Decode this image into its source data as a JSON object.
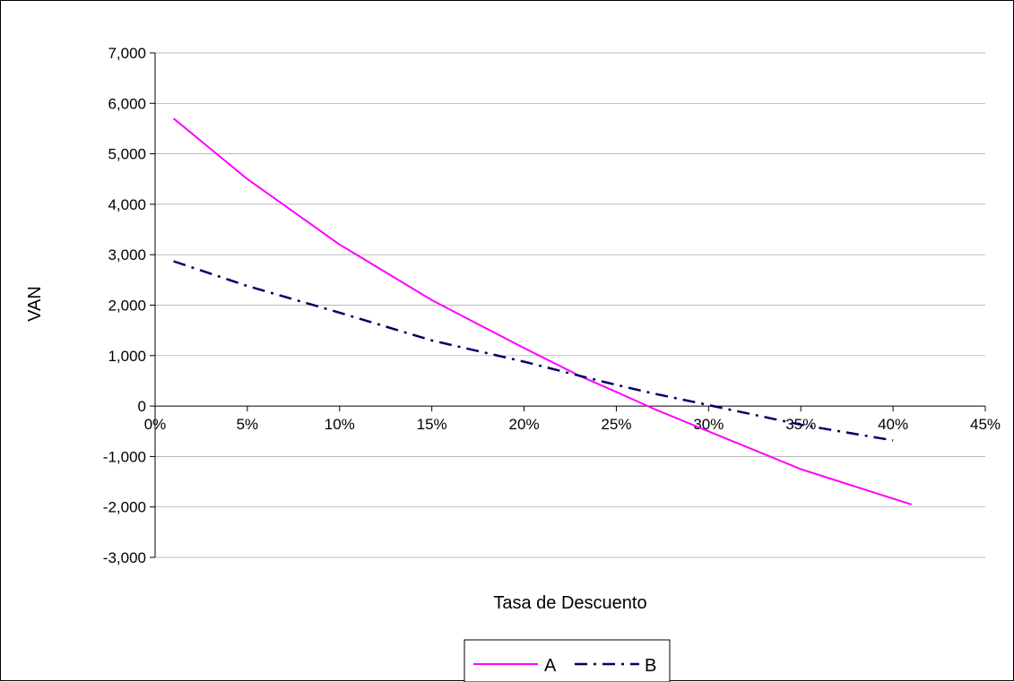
{
  "chart_data": {
    "type": "line",
    "title": "",
    "xlabel": "Tasa de Descuento",
    "ylabel": "VAN",
    "xlim": [
      0,
      45
    ],
    "ylim": [
      -3000,
      7000
    ],
    "x_ticks": [
      0,
      5,
      10,
      15,
      20,
      25,
      30,
      35,
      40,
      45
    ],
    "x_tick_labels": [
      "0%",
      "5%",
      "10%",
      "15%",
      "20%",
      "25%",
      "30%",
      "35%",
      "40%",
      "45%"
    ],
    "y_ticks": [
      -3000,
      -2000,
      -1000,
      0,
      1000,
      2000,
      3000,
      4000,
      5000,
      6000,
      7000
    ],
    "y_tick_labels": [
      "-3,000",
      "-2,000",
      "-1,000",
      "0",
      "1,000",
      "2,000",
      "3,000",
      "4,000",
      "5,000",
      "6,000",
      "7,000"
    ],
    "grid": true,
    "legend_position": "bottom",
    "series": [
      {
        "name": "A",
        "color": "#ff00ff",
        "style": "solid",
        "x": [
          1,
          5,
          10,
          15,
          20,
          23,
          25,
          27,
          30,
          35,
          41
        ],
        "y": [
          5700,
          4500,
          3200,
          2100,
          1150,
          600,
          280,
          -50,
          -500,
          -1250,
          -1950
        ]
      },
      {
        "name": "B",
        "color": "#000066",
        "style": "dash-dot",
        "x": [
          1,
          5,
          10,
          15,
          20,
          23,
          25,
          27,
          30,
          35,
          40
        ],
        "y": [
          2870,
          2380,
          1850,
          1300,
          880,
          600,
          420,
          250,
          20,
          -370,
          -680
        ]
      }
    ]
  }
}
